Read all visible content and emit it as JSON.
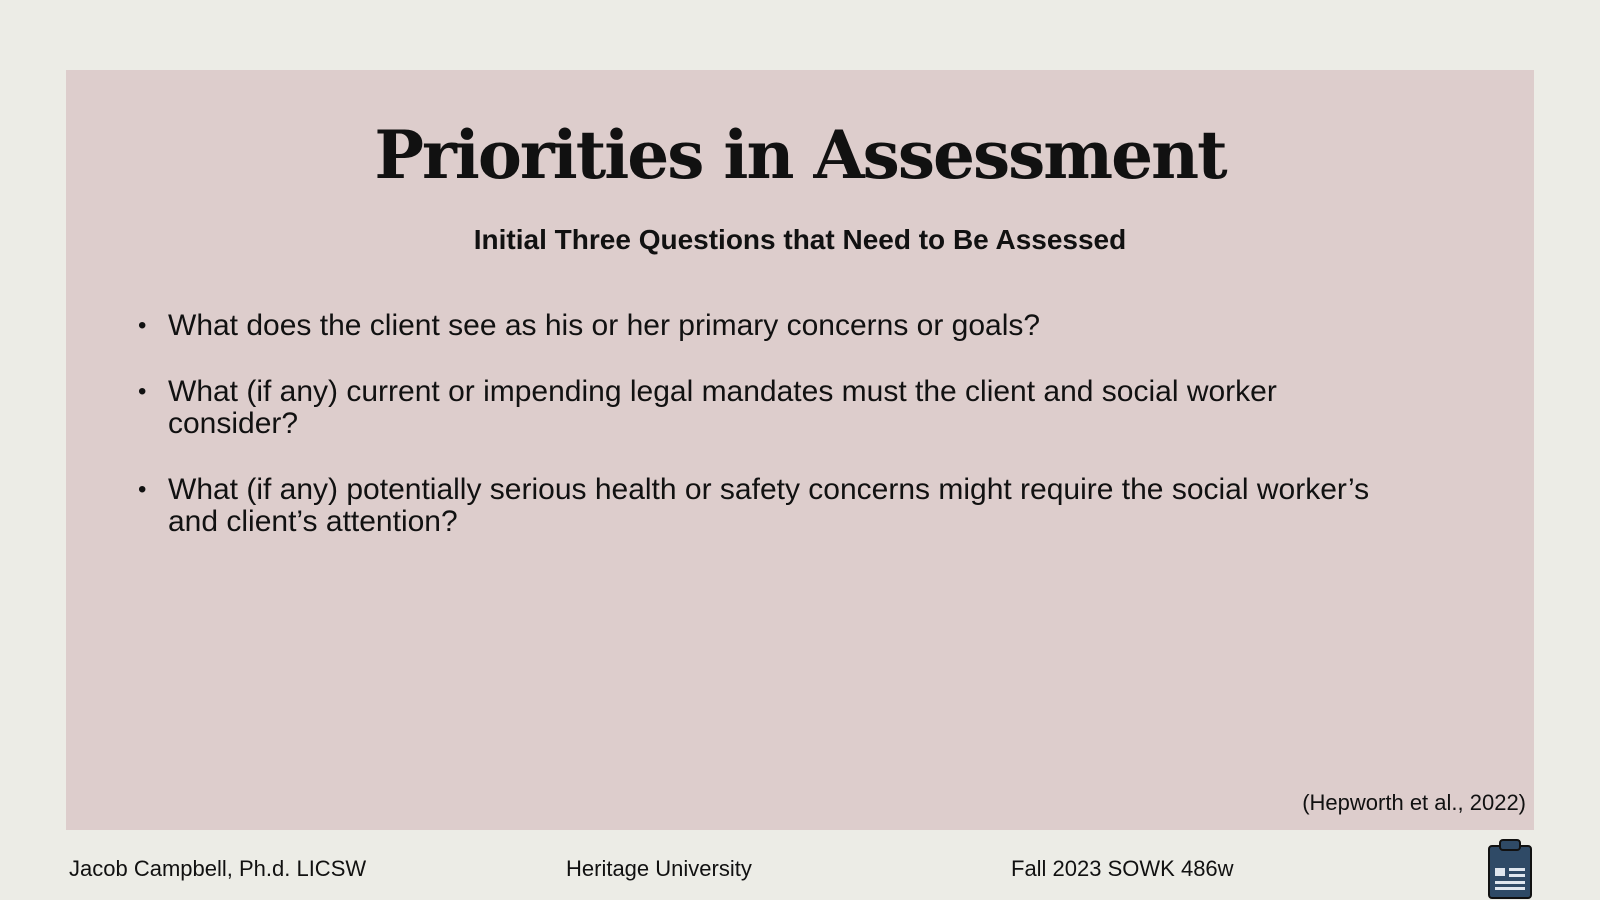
{
  "slide": {
    "title": "Priorities in Assessment",
    "subtitle": "Initial Three Questions that Need to Be Assessed",
    "bullets": [
      "What does the client see as his or her primary concerns or goals?",
      "What (if any) current or impending legal mandates must the client and social worker consider?",
      "What (if any) potentially serious health or safety concerns might require the social worker’s and client’s attention?"
    ],
    "citation": "(Hepworth et al., 2022)"
  },
  "footer": {
    "author": "Jacob Campbell, Ph.d. LICSW",
    "institution": "Heritage University",
    "course": "Fall 2023 SOWK 486w",
    "icon": "clipboard-icon"
  },
  "colors": {
    "background": "#ecece6",
    "panel": "#ddcdcc",
    "text": "#111111",
    "icon_fill": "#2f4a66"
  }
}
